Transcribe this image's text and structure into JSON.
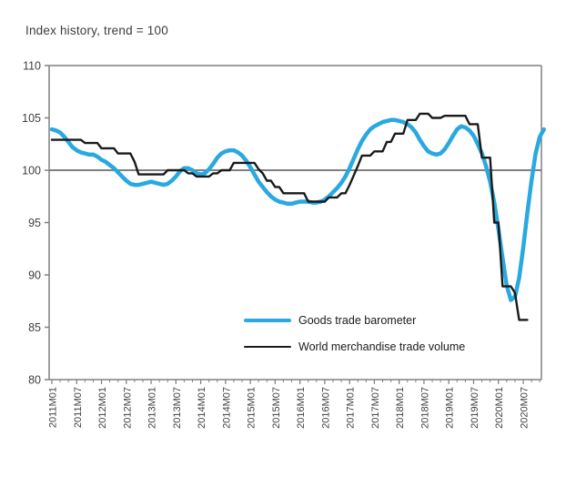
{
  "chart_data": {
    "type": "line",
    "title": "Index history, trend = 100",
    "xlabel": "",
    "ylabel": "",
    "ylim": [
      80,
      110
    ],
    "y_ticks": [
      110,
      105,
      100,
      95,
      90,
      85,
      80
    ],
    "x_start": "2011M01",
    "x_frequency": "monthly",
    "x_tick_labels": [
      "2011M01",
      "2011M07",
      "2012M01",
      "2012M07",
      "2013M01",
      "2013M07",
      "2014M01",
      "2014M07",
      "2015M01",
      "2015M07",
      "2016M01",
      "2016M07",
      "2017M01",
      "2017M07",
      "2018M01",
      "2018M07",
      "2019M01",
      "2019M07",
      "2020M01",
      "2020M07"
    ],
    "x_months_between_major_ticks": 6,
    "x_months_between_minor_ticks": 2,
    "grid": "off",
    "reference_line": {
      "value": 100,
      "color": "#7f7f7f"
    },
    "axis_color": "#808080",
    "label_color": "#404040",
    "legend_position": "inside-bottom-right",
    "series": [
      {
        "name": "Goods trade barometer",
        "color": "#29a9e0",
        "stroke_width": 4.5,
        "values": [
          103.9,
          103.8,
          103.6,
          103.2,
          102.7,
          102.2,
          101.9,
          101.7,
          101.6,
          101.5,
          101.5,
          101.3,
          101.0,
          100.8,
          100.5,
          100.2,
          99.8,
          99.4,
          99.0,
          98.7,
          98.6,
          98.6,
          98.7,
          98.8,
          98.9,
          98.8,
          98.7,
          98.6,
          98.7,
          99.0,
          99.4,
          99.9,
          100.2,
          100.2,
          100.0,
          99.7,
          99.6,
          99.7,
          100.1,
          100.6,
          101.2,
          101.6,
          101.8,
          101.9,
          101.9,
          101.7,
          101.4,
          100.9,
          100.3,
          99.6,
          98.9,
          98.4,
          97.9,
          97.5,
          97.2,
          97.0,
          96.9,
          96.8,
          96.8,
          96.9,
          97.0,
          97.0,
          97.0,
          96.9,
          96.9,
          97.0,
          97.2,
          97.5,
          97.9,
          98.3,
          98.8,
          99.4,
          100.2,
          101.1,
          102.0,
          102.8,
          103.4,
          103.9,
          104.2,
          104.4,
          104.6,
          104.7,
          104.8,
          104.8,
          104.7,
          104.6,
          104.4,
          104.1,
          103.6,
          102.9,
          102.3,
          101.8,
          101.6,
          101.5,
          101.6,
          102.0,
          102.6,
          103.3,
          103.9,
          104.2,
          104.1,
          103.8,
          103.3,
          102.5,
          101.6,
          100.4,
          98.9,
          96.9,
          94.4,
          91.6,
          89.0,
          87.6,
          87.9,
          89.7,
          92.6,
          95.9,
          99.0,
          101.6,
          103.2,
          103.9
        ]
      },
      {
        "name": "World merchandise trade volume",
        "color": "#1a1a1a",
        "stroke_width": 2.4,
        "values": [
          102.9,
          102.9,
          102.9,
          102.9,
          102.9,
          102.9,
          102.9,
          102.9,
          102.6,
          102.6,
          102.6,
          102.6,
          102.1,
          102.1,
          102.1,
          102.1,
          101.6,
          101.6,
          101.6,
          101.6,
          100.8,
          99.6,
          99.6,
          99.6,
          99.6,
          99.6,
          99.6,
          99.6,
          100.0,
          100.0,
          100.0,
          100.0,
          100.0,
          99.7,
          99.7,
          99.4,
          99.4,
          99.4,
          99.4,
          99.7,
          99.7,
          100.0,
          100.0,
          100.0,
          100.7,
          100.7,
          100.7,
          100.7,
          100.7,
          100.7,
          100.1,
          99.7,
          99.0,
          99.0,
          98.4,
          98.4,
          97.8,
          97.8,
          97.8,
          97.8,
          97.8,
          97.8,
          97.0,
          97.0,
          97.0,
          97.0,
          97.0,
          97.4,
          97.4,
          97.4,
          97.8,
          97.8,
          98.6,
          99.5,
          100.4,
          101.4,
          101.4,
          101.4,
          101.8,
          101.8,
          101.8,
          102.7,
          102.7,
          103.5,
          103.5,
          103.5,
          104.8,
          104.8,
          104.8,
          105.4,
          105.4,
          105.4,
          105.0,
          105.0,
          105.0,
          105.2,
          105.2,
          105.2,
          105.2,
          105.2,
          105.2,
          104.4,
          104.4,
          104.4,
          101.2,
          101.2,
          101.2,
          95.0,
          95.0,
          88.9,
          88.9,
          88.9,
          88.3,
          85.7,
          85.7,
          85.7
        ]
      }
    ]
  }
}
